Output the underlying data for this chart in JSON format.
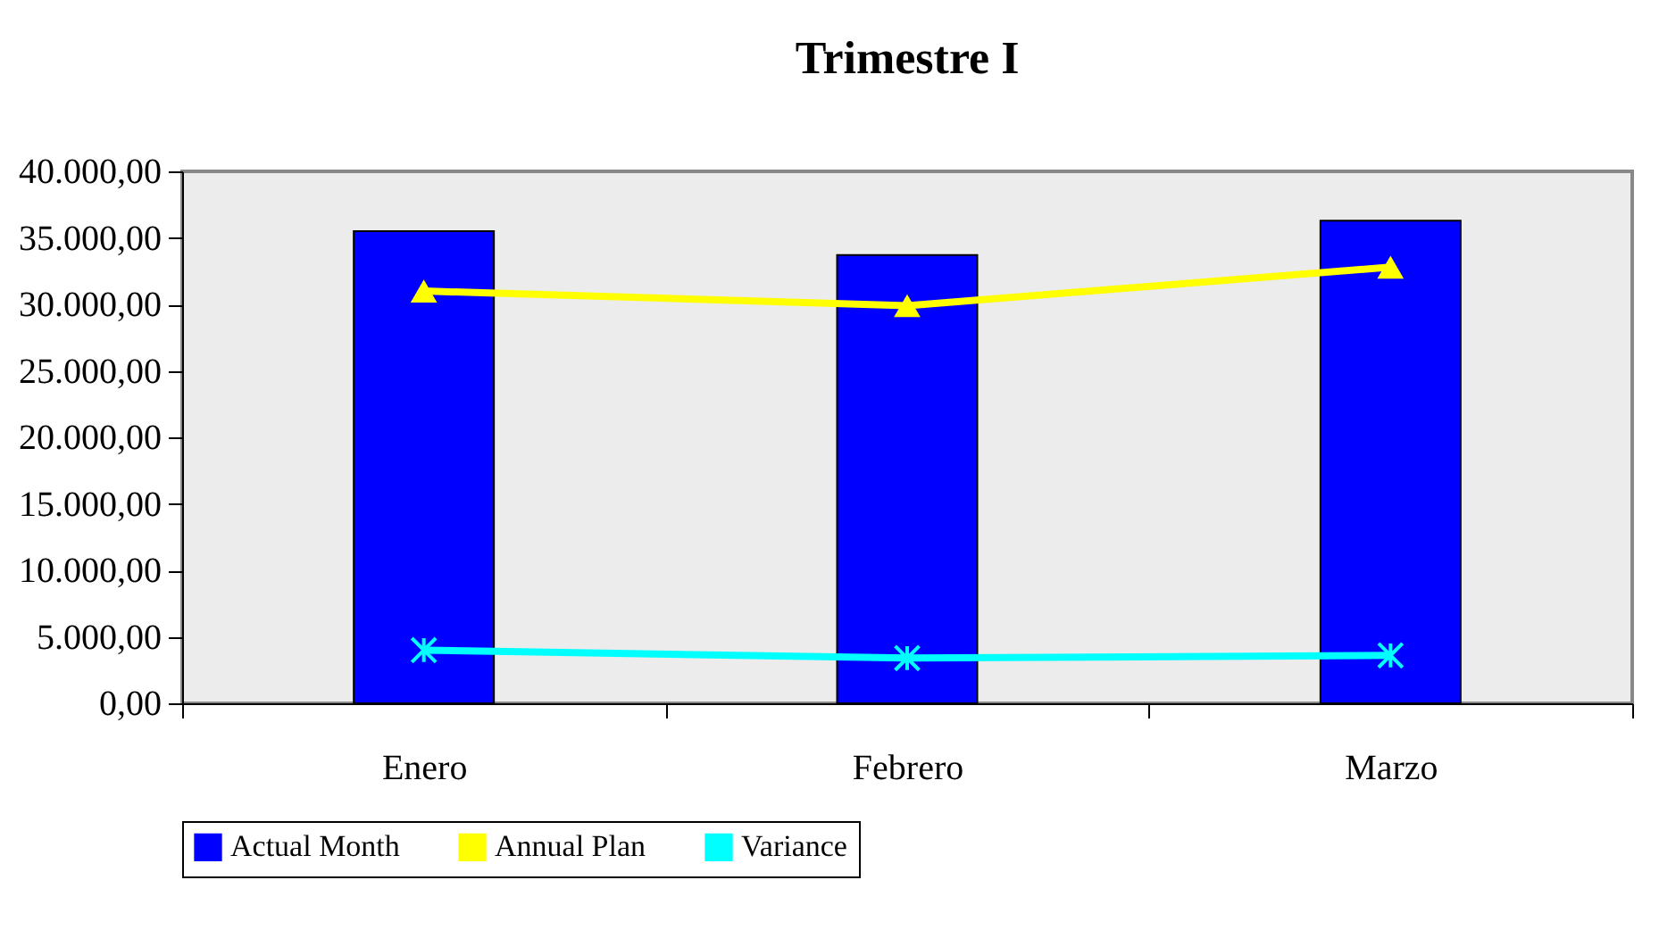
{
  "chart_data": {
    "type": "bar",
    "title": "Trimestre I",
    "categories": [
      "Enero",
      "Febrero",
      "Marzo"
    ],
    "series": [
      {
        "name": "Actual Month",
        "color": "#0000ff",
        "values": [
          35500,
          33700,
          36300
        ]
      },
      {
        "name": "Annual Plan",
        "type": "line",
        "color": "#ffff00",
        "marker": "triangle",
        "values": [
          31000,
          29900,
          32800
        ]
      },
      {
        "name": "Variance",
        "type": "line",
        "color": "#00ffff",
        "marker": "cross",
        "values": [
          4000,
          3400,
          3600
        ]
      }
    ],
    "ylim": [
      0,
      40000
    ],
    "yticks": [
      {
        "value": 0,
        "label": "0,00"
      },
      {
        "value": 5000,
        "label": "5.000,00"
      },
      {
        "value": 10000,
        "label": "10.000,00"
      },
      {
        "value": 15000,
        "label": "15.000,00"
      },
      {
        "value": 20000,
        "label": "20.000,00"
      },
      {
        "value": 25000,
        "label": "25.000,00"
      },
      {
        "value": 30000,
        "label": "30.000,00"
      },
      {
        "value": 35000,
        "label": "35.000,00"
      },
      {
        "value": 40000,
        "label": "40.000,00"
      }
    ],
    "grid": false,
    "legend": "bottom"
  }
}
